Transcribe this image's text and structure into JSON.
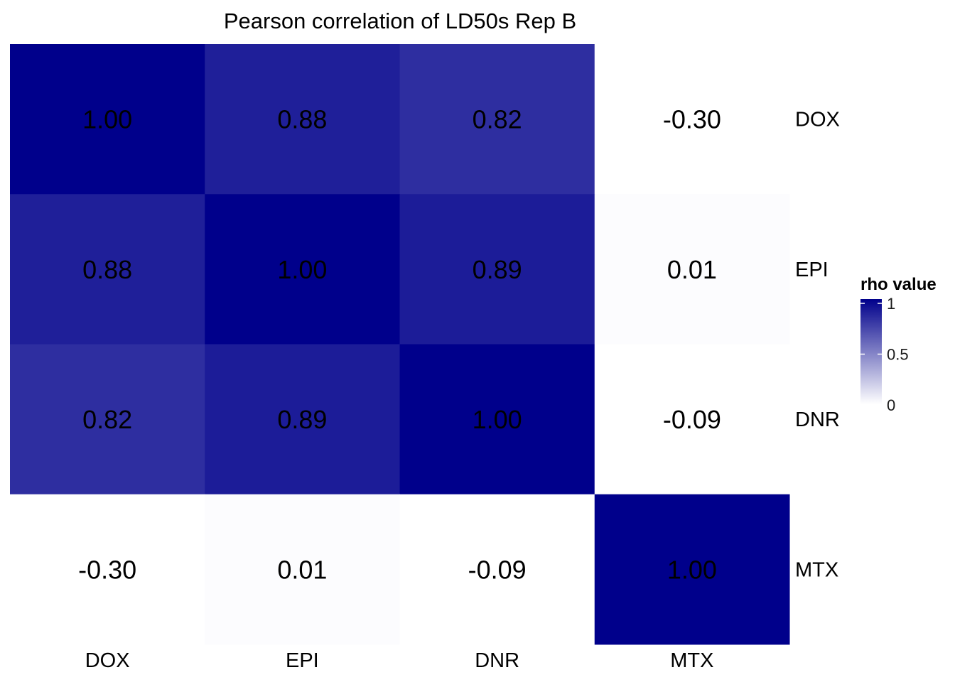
{
  "chart_data": {
    "type": "heatmap",
    "title": "Pearson correlation of LD50s Rep B",
    "x_labels": [
      "DOX",
      "EPI",
      "DNR",
      "MTX"
    ],
    "y_labels": [
      "DOX",
      "EPI",
      "DNR",
      "MTX"
    ],
    "values": [
      [
        1.0,
        0.88,
        0.82,
        -0.3
      ],
      [
        0.88,
        1.0,
        0.89,
        0.01
      ],
      [
        0.82,
        0.89,
        1.0,
        -0.09
      ],
      [
        -0.3,
        0.01,
        -0.09,
        1.0
      ]
    ],
    "value_labels": [
      [
        "1.00",
        "0.88",
        "0.82",
        "-0.30"
      ],
      [
        "0.88",
        "1.00",
        "0.89",
        "0.01"
      ],
      [
        "0.82",
        "0.89",
        "1.00",
        "-0.09"
      ],
      [
        "-0.30",
        "0.01",
        "-0.09",
        "1.00"
      ]
    ],
    "color_scale": {
      "low_value": 0,
      "high_value": 1,
      "low_color": "#ffffff",
      "high_color": "#00008b"
    },
    "legend": {
      "title": "rho value",
      "ticks": [
        {
          "value": 1,
          "label": "1"
        },
        {
          "value": 0.5,
          "label": "0.5"
        },
        {
          "value": 0,
          "label": "0"
        }
      ],
      "position": "right"
    },
    "grid": false
  }
}
